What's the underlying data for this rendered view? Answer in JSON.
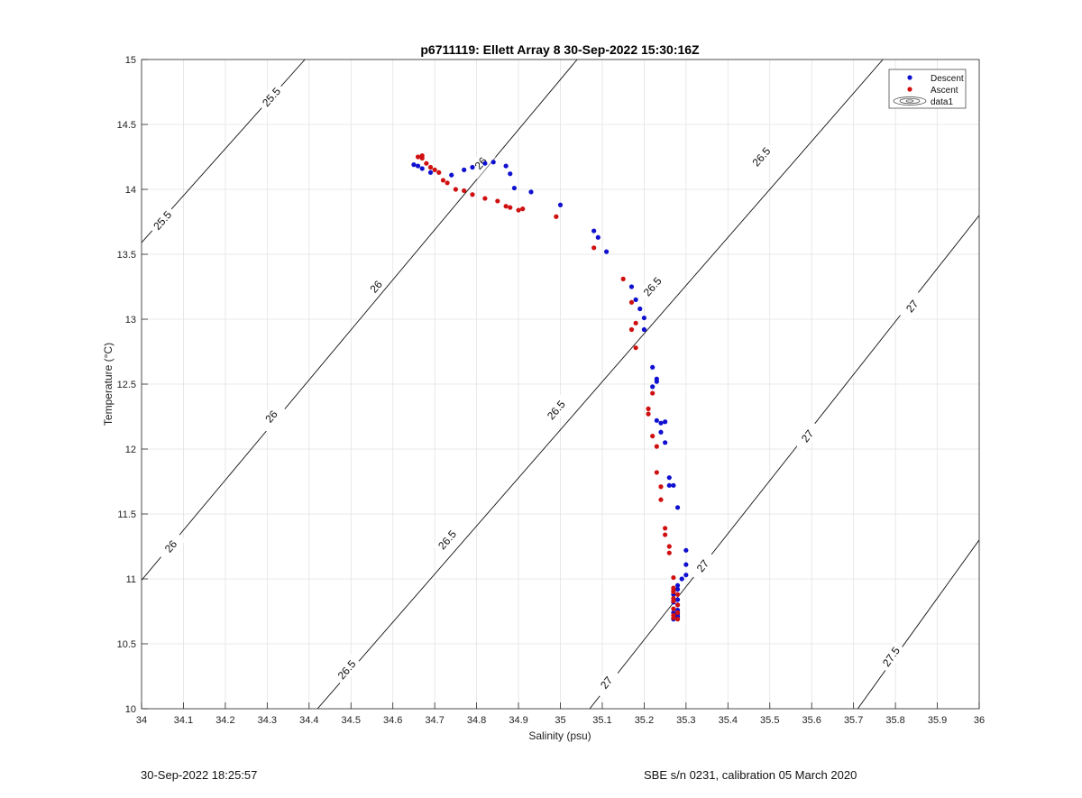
{
  "chart_data": {
    "type": "scatter",
    "title": "p6711119: Ellett Array 8 30-Sep-2022 15:30:16Z",
    "xlabel": "Salinity (psu)",
    "ylabel": "Temperature (°C)",
    "xlim": [
      34,
      36
    ],
    "ylim": [
      10,
      15
    ],
    "xticks": [
      "34",
      "34.1",
      "34.2",
      "34.3",
      "34.4",
      "34.5",
      "34.6",
      "34.7",
      "34.8",
      "34.9",
      "35",
      "35.1",
      "35.2",
      "35.3",
      "35.4",
      "35.5",
      "35.6",
      "35.7",
      "35.8",
      "35.9",
      "36"
    ],
    "yticks": [
      "10",
      "10.5",
      "11",
      "11.5",
      "12",
      "12.5",
      "13",
      "13.5",
      "14",
      "14.5",
      "15"
    ],
    "grid": true,
    "legend_placement": "top-right",
    "legend": [
      {
        "label": "Descent",
        "color": "#1010d0",
        "marker": "dot"
      },
      {
        "label": "Ascent",
        "color": "#d01010",
        "marker": "dot"
      },
      {
        "label": "data1",
        "color": "#000000",
        "marker": "contour"
      }
    ],
    "contours": [
      {
        "level": "25.5",
        "points": [
          [
            34.0,
            13.59
          ],
          [
            34.39,
            15.0
          ]
        ],
        "labels": [
          [
            34.05,
            13.76
          ],
          [
            34.31,
            14.71
          ]
        ]
      },
      {
        "level": "26",
        "points": [
          [
            34.0,
            10.99
          ],
          [
            35.04,
            15.0
          ]
        ],
        "labels": [
          [
            34.07,
            11.25
          ],
          [
            34.31,
            12.25
          ],
          [
            34.56,
            13.25
          ],
          [
            34.81,
            14.2
          ]
        ]
      },
      {
        "level": "26.5",
        "points": [
          [
            34.42,
            10.0
          ],
          [
            35.77,
            15.0
          ]
        ],
        "labels": [
          [
            34.49,
            10.3
          ],
          [
            34.73,
            11.3
          ],
          [
            34.99,
            12.3
          ],
          [
            35.22,
            13.25
          ],
          [
            35.48,
            14.25
          ]
        ]
      },
      {
        "level": "27",
        "points": [
          [
            35.07,
            10.0
          ],
          [
            36.0,
            13.8
          ]
        ],
        "labels": [
          [
            35.11,
            10.2
          ],
          [
            35.34,
            11.1
          ],
          [
            35.59,
            12.1
          ],
          [
            35.84,
            13.1
          ]
        ]
      },
      {
        "level": "27.5",
        "points": [
          [
            35.71,
            10.0
          ],
          [
            36.0,
            11.3
          ]
        ],
        "labels": [
          [
            35.79,
            10.4
          ]
        ]
      }
    ],
    "series": [
      {
        "name": "Descent",
        "color": "#1010d0",
        "x": [
          34.65,
          34.66,
          34.67,
          34.69,
          34.74,
          34.77,
          34.79,
          34.82,
          34.84,
          34.87,
          34.88,
          34.89,
          34.93,
          35.0,
          35.08,
          35.09,
          35.11,
          35.17,
          35.18,
          35.19,
          35.2,
          35.2,
          35.22,
          35.23,
          35.22,
          35.23,
          35.24,
          35.24,
          35.23,
          35.25,
          35.25,
          35.26,
          35.26,
          35.27,
          35.28,
          35.3,
          35.3,
          35.29,
          35.3,
          35.28,
          35.28,
          35.27,
          35.28,
          35.27,
          35.28,
          35.28,
          35.27,
          35.28,
          35.27,
          35.28
        ],
        "y": [
          14.19,
          14.18,
          14.16,
          14.13,
          14.11,
          14.15,
          14.17,
          14.2,
          14.21,
          14.18,
          14.12,
          14.01,
          13.98,
          13.88,
          13.68,
          13.63,
          13.52,
          13.25,
          13.15,
          13.08,
          13.01,
          12.92,
          12.63,
          12.52,
          12.48,
          12.54,
          12.2,
          12.13,
          12.22,
          12.05,
          12.21,
          11.78,
          11.72,
          11.72,
          11.55,
          11.22,
          11.11,
          11.0,
          11.03,
          10.95,
          10.92,
          10.88,
          10.84,
          10.82,
          10.8,
          10.76,
          10.74,
          10.71,
          10.69,
          10.73
        ]
      },
      {
        "name": "Ascent",
        "color": "#d01010",
        "x": [
          34.66,
          34.67,
          34.67,
          34.68,
          34.69,
          34.7,
          34.71,
          34.72,
          34.73,
          34.75,
          34.77,
          34.79,
          34.82,
          34.85,
          34.87,
          34.88,
          34.9,
          34.91,
          34.99,
          35.08,
          35.15,
          35.17,
          35.17,
          35.18,
          35.18,
          35.21,
          35.21,
          35.22,
          35.22,
          35.23,
          35.23,
          35.24,
          35.24,
          35.25,
          35.25,
          35.26,
          35.26,
          35.27,
          35.27,
          35.27,
          35.27,
          35.28,
          35.27,
          35.28,
          35.27,
          35.27,
          35.28,
          35.27,
          35.28,
          35.27
        ],
        "y": [
          14.25,
          14.26,
          14.24,
          14.2,
          14.17,
          14.15,
          14.13,
          14.07,
          14.05,
          14.0,
          13.99,
          13.96,
          13.93,
          13.91,
          13.87,
          13.86,
          13.84,
          13.85,
          13.79,
          13.55,
          13.31,
          13.13,
          12.92,
          12.97,
          12.78,
          12.31,
          12.27,
          12.43,
          12.1,
          12.02,
          11.82,
          11.71,
          11.61,
          11.39,
          11.34,
          11.2,
          11.25,
          11.01,
          10.93,
          10.9,
          10.85,
          10.8,
          10.77,
          10.74,
          10.72,
          10.7,
          10.69,
          10.83,
          10.88,
          10.91
        ]
      }
    ]
  },
  "footer": {
    "left": "30-Sep-2022 18:25:57",
    "right": "SBE s/n 0231, calibration 05 March 2020"
  }
}
